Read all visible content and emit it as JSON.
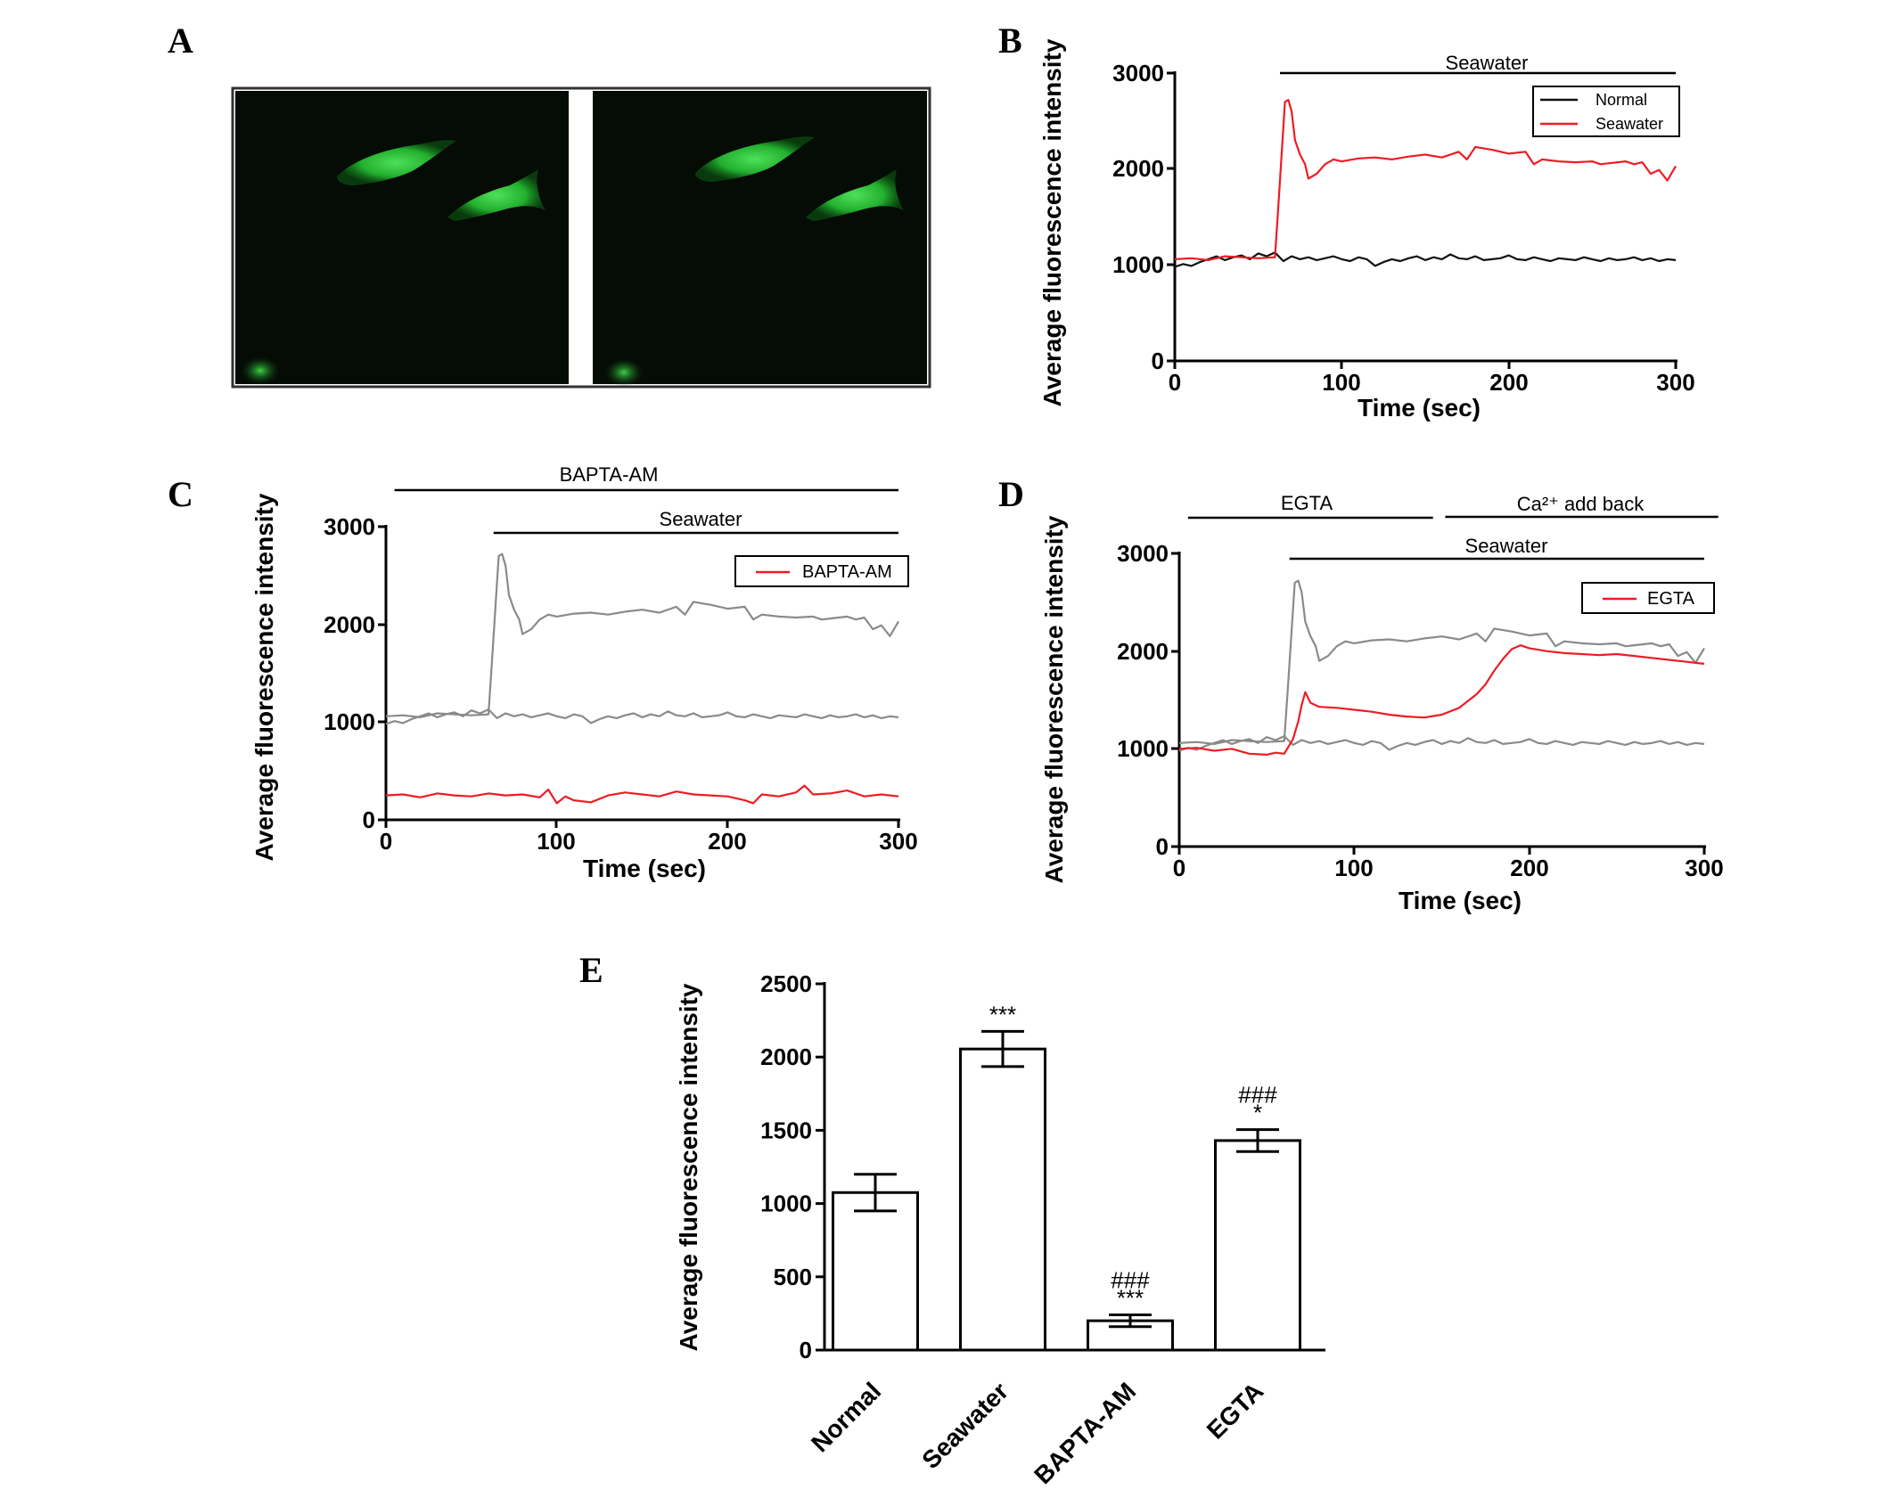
{
  "colors": {
    "red": "#ee1c25",
    "black": "#111111",
    "gray": "#8a8a8a",
    "cell_green": "#2ec93a",
    "image_bg": "#050b05"
  },
  "panel_A": {
    "label": "A",
    "images": [
      "fluorescence-micrograph-left",
      "fluorescence-micrograph-right"
    ]
  },
  "chart_data": [
    {
      "panel": "B",
      "type": "line",
      "ylabel": "Average fluorescence intensity",
      "xlabel": "Time (sec)",
      "xlim": [
        0,
        300
      ],
      "ylim": [
        0,
        3000
      ],
      "xticks": [
        "0",
        "100",
        "200",
        "300"
      ],
      "yticks": [
        "0",
        "1000",
        "2000",
        "3000"
      ],
      "bars": [
        {
          "label": "Seawater",
          "from": 63,
          "to": 300
        }
      ],
      "legend": [
        "Normal",
        "Seawater"
      ],
      "series": [
        {
          "name": "Normal",
          "color": "black",
          "x": [
            0,
            5,
            10,
            15,
            20,
            25,
            30,
            35,
            40,
            45,
            50,
            55,
            60,
            65,
            70,
            75,
            80,
            85,
            90,
            95,
            100,
            105,
            110,
            115,
            120,
            125,
            130,
            135,
            140,
            145,
            150,
            155,
            160,
            165,
            170,
            175,
            180,
            185,
            190,
            195,
            200,
            205,
            210,
            215,
            220,
            225,
            230,
            235,
            240,
            245,
            250,
            255,
            260,
            265,
            270,
            275,
            280,
            285,
            290,
            295,
            300
          ],
          "y": [
            980,
            1010,
            990,
            1030,
            1060,
            1090,
            1050,
            1080,
            1100,
            1060,
            1120,
            1090,
            1130,
            1040,
            1090,
            1060,
            1080,
            1050,
            1070,
            1090,
            1060,
            1040,
            1080,
            1060,
            990,
            1030,
            1060,
            1040,
            1070,
            1090,
            1050,
            1080,
            1060,
            1110,
            1070,
            1060,
            1090,
            1050,
            1060,
            1070,
            1100,
            1060,
            1050,
            1080,
            1060,
            1040,
            1070,
            1060,
            1050,
            1080,
            1060,
            1040,
            1070,
            1050,
            1060,
            1080,
            1050,
            1070,
            1040,
            1060,
            1050
          ]
        },
        {
          "name": "Seawater",
          "color": "red",
          "x": [
            0,
            10,
            20,
            30,
            40,
            50,
            60,
            62,
            66,
            68,
            70,
            72,
            75,
            78,
            80,
            85,
            90,
            95,
            100,
            110,
            120,
            130,
            140,
            150,
            160,
            170,
            175,
            180,
            190,
            200,
            210,
            215,
            220,
            230,
            240,
            250,
            255,
            260,
            270,
            275,
            280,
            285,
            290,
            295,
            300
          ],
          "y": [
            1060,
            1070,
            1050,
            1090,
            1080,
            1070,
            1080,
            1600,
            2700,
            2720,
            2600,
            2300,
            2150,
            2050,
            1900,
            1950,
            2050,
            2100,
            2080,
            2110,
            2120,
            2100,
            2130,
            2150,
            2120,
            2180,
            2100,
            2230,
            2200,
            2160,
            2180,
            2050,
            2100,
            2080,
            2070,
            2080,
            2050,
            2060,
            2080,
            2050,
            2070,
            1950,
            1990,
            1880,
            2030
          ]
        }
      ]
    },
    {
      "panel": "C",
      "type": "line",
      "ylabel": "Average fluorescence intensity",
      "xlabel": "Time (sec)",
      "xlim": [
        0,
        300
      ],
      "ylim": [
        0,
        3000
      ],
      "xticks": [
        "0",
        "100",
        "200",
        "300"
      ],
      "yticks": [
        "0",
        "1000",
        "2000",
        "3000"
      ],
      "bars": [
        {
          "label": "BAPTA-AM",
          "from": 5,
          "to": 300
        },
        {
          "label": "Seawater",
          "from": 63,
          "to": 300
        }
      ],
      "legend": [
        "BAPTA-AM"
      ],
      "series": [
        {
          "name": "BAPTA-AM",
          "color": "red",
          "x": [
            0,
            10,
            20,
            30,
            40,
            50,
            60,
            70,
            80,
            90,
            95,
            100,
            105,
            110,
            120,
            130,
            140,
            150,
            160,
            170,
            180,
            190,
            200,
            210,
            215,
            220,
            230,
            240,
            245,
            250,
            260,
            270,
            280,
            290,
            300
          ],
          "y": [
            250,
            260,
            230,
            270,
            250,
            240,
            270,
            250,
            260,
            230,
            310,
            170,
            240,
            200,
            180,
            250,
            280,
            260,
            240,
            290,
            260,
            250,
            240,
            200,
            170,
            260,
            240,
            280,
            350,
            260,
            270,
            300,
            240,
            260,
            240
          ]
        },
        {
          "name": "",
          "color": "gray",
          "x": [
            0,
            5,
            10,
            15,
            20,
            25,
            30,
            35,
            40,
            45,
            50,
            55,
            60,
            65,
            70,
            75,
            80,
            85,
            90,
            95,
            100,
            105,
            110,
            115,
            120,
            125,
            130,
            135,
            140,
            145,
            150,
            155,
            160,
            165,
            170,
            175,
            180,
            185,
            190,
            195,
            200,
            205,
            210,
            215,
            220,
            225,
            230,
            235,
            240,
            245,
            250,
            255,
            260,
            265,
            270,
            275,
            280,
            285,
            290,
            295,
            300
          ],
          "y": [
            980,
            1010,
            990,
            1030,
            1060,
            1090,
            1050,
            1080,
            1100,
            1060,
            1120,
            1090,
            1130,
            1040,
            1090,
            1060,
            1080,
            1050,
            1070,
            1090,
            1060,
            1040,
            1080,
            1060,
            990,
            1030,
            1060,
            1040,
            1070,
            1090,
            1050,
            1080,
            1060,
            1110,
            1070,
            1060,
            1090,
            1050,
            1060,
            1070,
            1100,
            1060,
            1050,
            1080,
            1060,
            1040,
            1070,
            1060,
            1050,
            1080,
            1060,
            1040,
            1070,
            1050,
            1060,
            1080,
            1050,
            1070,
            1040,
            1060,
            1050
          ]
        },
        {
          "name": "",
          "color": "gray",
          "x": [
            0,
            10,
            20,
            30,
            40,
            50,
            60,
            62,
            66,
            68,
            70,
            72,
            75,
            78,
            80,
            85,
            90,
            95,
            100,
            110,
            120,
            130,
            140,
            150,
            160,
            170,
            175,
            180,
            190,
            200,
            210,
            215,
            220,
            230,
            240,
            250,
            255,
            260,
            270,
            275,
            280,
            285,
            290,
            295,
            300
          ],
          "y": [
            1060,
            1070,
            1050,
            1090,
            1080,
            1070,
            1080,
            1600,
            2700,
            2720,
            2600,
            2300,
            2150,
            2050,
            1900,
            1950,
            2050,
            2100,
            2080,
            2110,
            2120,
            2100,
            2130,
            2150,
            2120,
            2180,
            2100,
            2230,
            2200,
            2160,
            2180,
            2050,
            2100,
            2080,
            2070,
            2080,
            2050,
            2060,
            2080,
            2050,
            2070,
            1950,
            1990,
            1880,
            2030
          ]
        }
      ]
    },
    {
      "panel": "D",
      "type": "line",
      "ylabel": "Average fluorescence intensity",
      "xlabel": "Time (sec)",
      "xlim": [
        0,
        300
      ],
      "ylim": [
        0,
        3000
      ],
      "xticks": [
        "0",
        "100",
        "200",
        "300"
      ],
      "yticks": [
        "0",
        "1000",
        "2000",
        "3000"
      ],
      "bars": [
        {
          "label": "EGTA",
          "from": 5,
          "to": 145
        },
        {
          "label": "Ca²⁺ add back",
          "from": 152,
          "to": 308
        },
        {
          "label": "Seawater",
          "from": 63,
          "to": 300
        }
      ],
      "legend": [
        "EGTA"
      ],
      "series": [
        {
          "name": "",
          "color": "gray",
          "x": [
            0,
            5,
            10,
            15,
            20,
            25,
            30,
            35,
            40,
            45,
            50,
            55,
            60,
            65,
            70,
            75,
            80,
            85,
            90,
            95,
            100,
            105,
            110,
            115,
            120,
            125,
            130,
            135,
            140,
            145,
            150,
            155,
            160,
            165,
            170,
            175,
            180,
            185,
            190,
            195,
            200,
            205,
            210,
            215,
            220,
            225,
            230,
            235,
            240,
            245,
            250,
            255,
            260,
            265,
            270,
            275,
            280,
            285,
            290,
            295,
            300
          ],
          "y": [
            980,
            1010,
            990,
            1030,
            1060,
            1090,
            1050,
            1080,
            1100,
            1060,
            1120,
            1090,
            1130,
            1040,
            1090,
            1060,
            1080,
            1050,
            1070,
            1090,
            1060,
            1040,
            1080,
            1060,
            990,
            1030,
            1060,
            1040,
            1070,
            1090,
            1050,
            1080,
            1060,
            1110,
            1070,
            1060,
            1090,
            1050,
            1060,
            1070,
            1100,
            1060,
            1050,
            1080,
            1060,
            1040,
            1070,
            1060,
            1050,
            1080,
            1060,
            1040,
            1070,
            1050,
            1060,
            1080,
            1050,
            1070,
            1040,
            1060,
            1050
          ]
        },
        {
          "name": "",
          "color": "gray",
          "x": [
            0,
            10,
            20,
            30,
            40,
            50,
            60,
            62,
            66,
            68,
            70,
            72,
            75,
            78,
            80,
            85,
            90,
            95,
            100,
            110,
            120,
            130,
            140,
            150,
            160,
            170,
            175,
            180,
            190,
            200,
            210,
            215,
            220,
            230,
            240,
            250,
            255,
            260,
            270,
            275,
            280,
            285,
            290,
            295,
            300
          ],
          "y": [
            1060,
            1070,
            1050,
            1090,
            1080,
            1070,
            1080,
            1600,
            2700,
            2720,
            2600,
            2300,
            2150,
            2050,
            1900,
            1950,
            2050,
            2100,
            2080,
            2110,
            2120,
            2100,
            2130,
            2150,
            2120,
            2180,
            2100,
            2230,
            2200,
            2160,
            2180,
            2050,
            2100,
            2080,
            2070,
            2080,
            2050,
            2060,
            2080,
            2050,
            2070,
            1950,
            1990,
            1880,
            2030
          ]
        },
        {
          "name": "EGTA",
          "color": "red",
          "x": [
            0,
            10,
            20,
            30,
            40,
            50,
            55,
            60,
            65,
            68,
            70,
            72,
            75,
            80,
            90,
            100,
            110,
            120,
            130,
            140,
            150,
            160,
            170,
            175,
            180,
            185,
            190,
            195,
            200,
            210,
            220,
            230,
            240,
            250,
            260,
            270,
            280,
            290,
            300
          ],
          "y": [
            1000,
            1010,
            980,
            1000,
            950,
            940,
            960,
            950,
            1100,
            1280,
            1450,
            1580,
            1470,
            1430,
            1420,
            1400,
            1380,
            1350,
            1330,
            1320,
            1350,
            1420,
            1560,
            1660,
            1800,
            1920,
            2020,
            2060,
            2030,
            2000,
            1980,
            1970,
            1960,
            1970,
            1950,
            1930,
            1910,
            1890,
            1870
          ]
        }
      ]
    },
    {
      "panel": "E",
      "type": "bar",
      "ylabel": "Average fluorescence intensity",
      "categories": [
        "Normal",
        "Seawater",
        "BAPTA-AM",
        "EGTA"
      ],
      "values": [
        1075,
        2055,
        200,
        1430
      ],
      "errors": [
        125,
        120,
        40,
        75
      ],
      "annotations": [
        [
          "",
          ""
        ],
        [
          "***",
          ""
        ],
        [
          "***",
          "###"
        ],
        [
          "*",
          "###"
        ]
      ],
      "ylim": [
        0,
        2500
      ],
      "yticks": [
        "0",
        "500",
        "1000",
        "1500",
        "2000",
        "2500"
      ]
    }
  ]
}
